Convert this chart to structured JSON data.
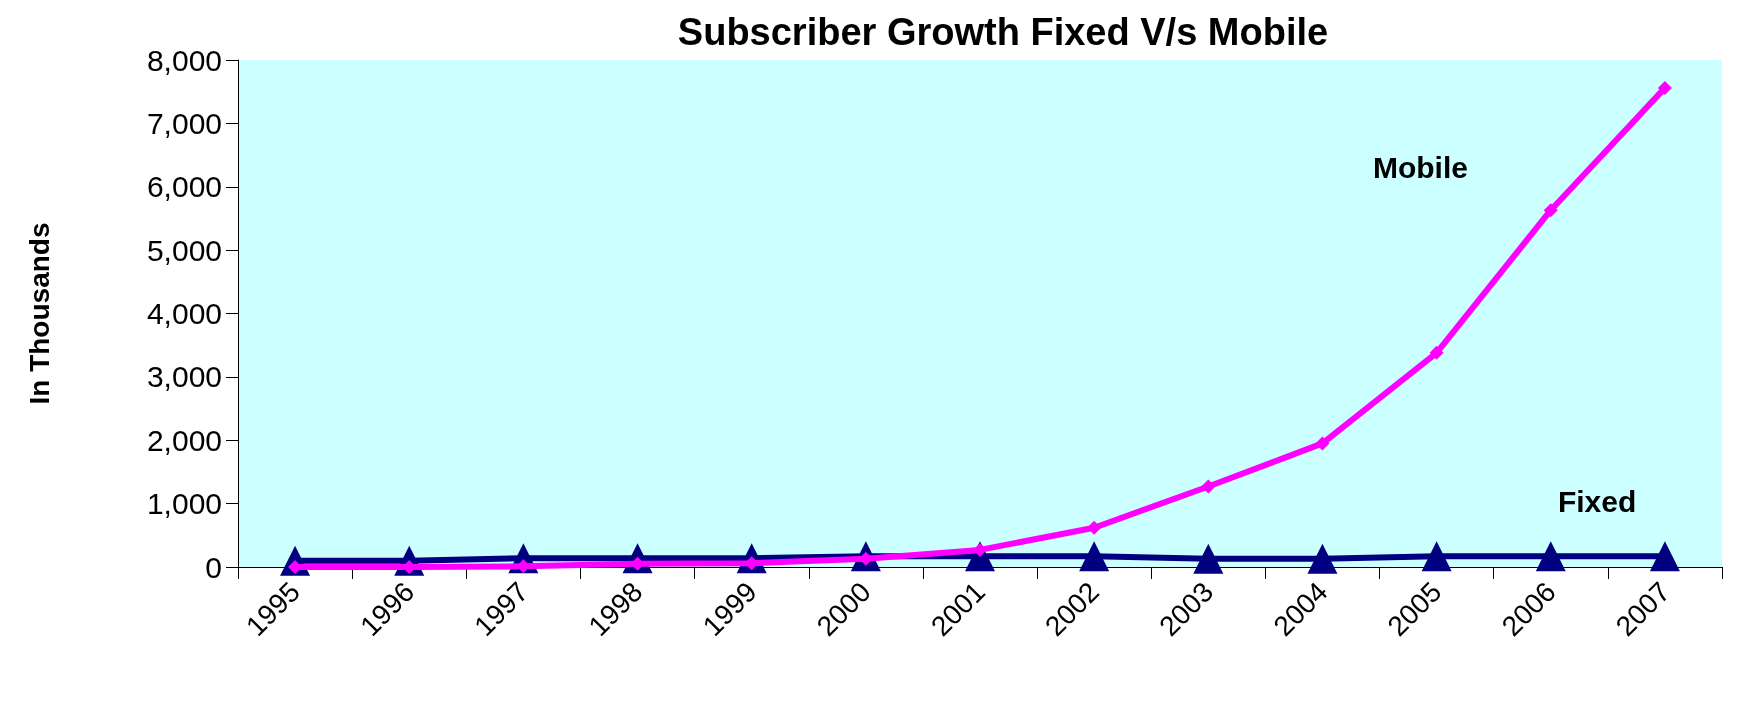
{
  "chart_data": {
    "type": "line",
    "title": "Subscriber Growth Fixed V/s Mobile",
    "ylabel": "In Thousands",
    "categories": [
      "1995",
      "1996",
      "1997",
      "1998",
      "1999",
      "2000",
      "2001",
      "2002",
      "2003",
      "2004",
      "2005",
      "2006",
      "2007"
    ],
    "series": [
      {
        "name": "Mobile",
        "color": "#ff00ff",
        "marker": "diamond",
        "values": [
          0,
          0,
          10,
          50,
          60,
          130,
          270,
          620,
          1270,
          1950,
          3380,
          5630,
          7560
        ]
      },
      {
        "name": "Fixed",
        "color": "#000080",
        "marker": "triangle",
        "values": [
          100,
          100,
          140,
          140,
          140,
          170,
          170,
          170,
          130,
          130,
          170,
          170,
          170
        ]
      }
    ],
    "ylim": [
      0,
      8000
    ],
    "yticks": [
      0,
      {
        "value": 1000,
        "label": "1,000"
      },
      {
        "value": 2000,
        "label": "2,000"
      },
      {
        "value": 3000,
        "label": "3,000"
      },
      {
        "value": 4000,
        "label": "4,000"
      },
      {
        "value": 5000,
        "label": "5,000"
      },
      {
        "value": 6000,
        "label": "6,000"
      },
      {
        "value": 7000,
        "label": "7,000"
      },
      {
        "value": 8000,
        "label": "8,000"
      }
    ],
    "grid": false,
    "legend": false
  }
}
